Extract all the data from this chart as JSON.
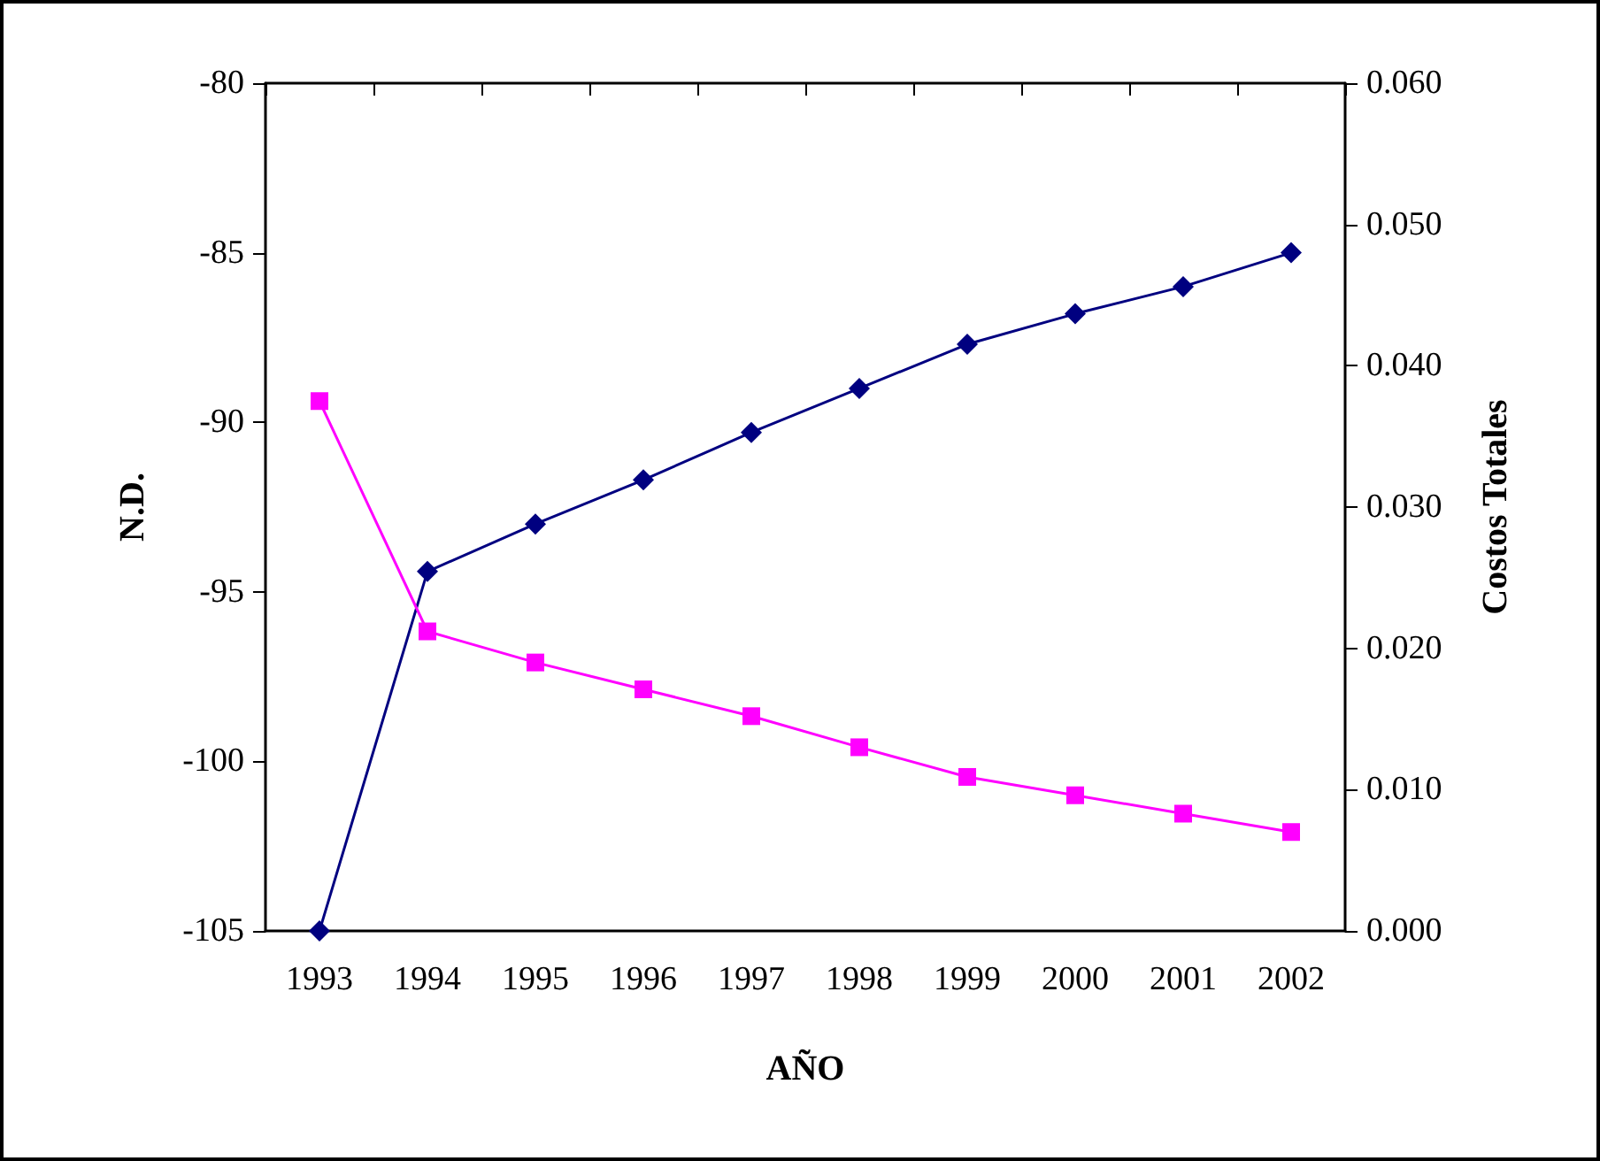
{
  "chart_data": {
    "type": "line",
    "xlabel": "AÑO",
    "ylabel": "N.D.",
    "y2label": "Costos Totales",
    "categories": [
      "1993",
      "1994",
      "1995",
      "1996",
      "1997",
      "1998",
      "1999",
      "2000",
      "2001",
      "2002"
    ],
    "series": [
      {
        "color": "#000080",
        "marker": "diamond",
        "values": [
          -105,
          -94.4,
          -93.0,
          -91.7,
          -90.3,
          -89.0,
          -87.7,
          -86.8,
          -86.0,
          -85.0
        ]
      },
      {
        "color": "#ff00ff",
        "marker": "square",
        "axis": "y2",
        "values": [
          0.0375,
          0.0212,
          0.019,
          0.0171,
          0.0152,
          0.013,
          0.0109,
          0.0096,
          0.0083,
          0.007
        ]
      }
    ],
    "ylim": [
      -105,
      -80
    ],
    "yticks": [
      -105,
      -100,
      -95,
      -90,
      -85,
      -80
    ],
    "y2lim": [
      0,
      0.06
    ],
    "y2ticks": [
      {
        "value": 0,
        "label": "0.000"
      },
      {
        "value": 0.01,
        "label": "0.010"
      },
      {
        "value": 0.02,
        "label": "0.020"
      },
      {
        "value": 0.03,
        "label": "0.030"
      },
      {
        "value": 0.04,
        "label": "0.040"
      },
      {
        "value": 0.05,
        "label": "0.050"
      },
      {
        "value": 0.06,
        "label": "0.060"
      }
    ],
    "grid": false,
    "line_style": "solid"
  }
}
